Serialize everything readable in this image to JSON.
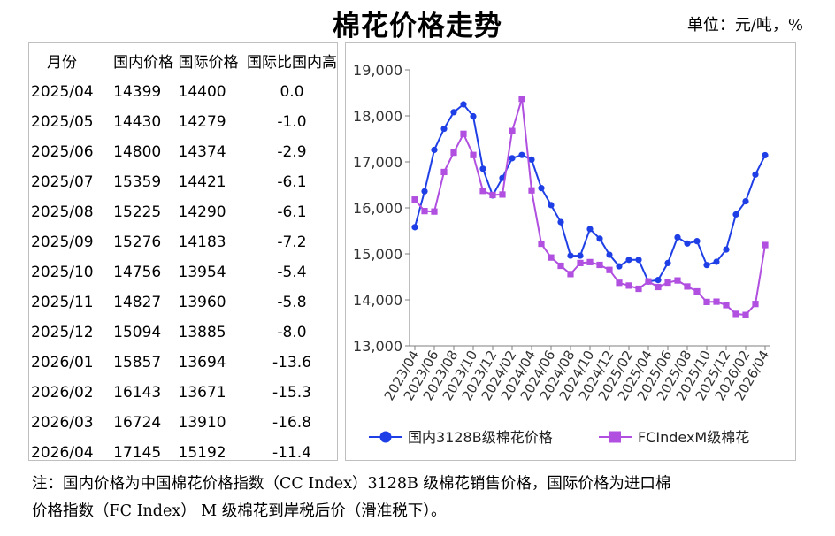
{
  "header": {
    "title": "棉花价格走势",
    "unit": "单位：元/吨，%"
  },
  "table": {
    "columns": [
      "月份",
      "国内价格",
      "国际价格",
      "国际比国内高"
    ],
    "rows": [
      [
        "2025/04",
        "14399",
        "14400",
        "0.0"
      ],
      [
        "2025/05",
        "14430",
        "14279",
        "-1.0"
      ],
      [
        "2025/06",
        "14800",
        "14374",
        "-2.9"
      ],
      [
        "2025/07",
        "15359",
        "14421",
        "-6.1"
      ],
      [
        "2025/08",
        "15225",
        "14290",
        "-6.1"
      ],
      [
        "2025/09",
        "15276",
        "14183",
        "-7.2"
      ],
      [
        "2025/10",
        "14756",
        "13954",
        "-5.4"
      ],
      [
        "2025/11",
        "14827",
        "13960",
        "-5.8"
      ],
      [
        "2025/12",
        "15094",
        "13885",
        "-8.0"
      ],
      [
        "2026/01",
        "15857",
        "13694",
        "-13.6"
      ],
      [
        "2026/02",
        "16143",
        "13671",
        "-15.3"
      ],
      [
        "2026/03",
        "16724",
        "13910",
        "-16.8"
      ],
      [
        "2026/04",
        "17145",
        "15192",
        "-11.4"
      ]
    ]
  },
  "chart_data": {
    "type": "line",
    "x": [
      "2023/04",
      "2023/05",
      "2023/06",
      "2023/07",
      "2023/08",
      "2023/09",
      "2023/10",
      "2023/11",
      "2023/12",
      "2024/01",
      "2024/02",
      "2024/03",
      "2024/04",
      "2024/05",
      "2024/06",
      "2024/07",
      "2024/08",
      "2024/09",
      "2024/10",
      "2024/11",
      "2024/12",
      "2025/01",
      "2025/02",
      "2025/03",
      "2025/04",
      "2025/05",
      "2025/06",
      "2025/07",
      "2025/08",
      "2025/09",
      "2025/10",
      "2025/11",
      "2025/12",
      "2026/01",
      "2026/02",
      "2026/03",
      "2026/04"
    ],
    "x_tick_labels": [
      "2023/04",
      "2023/06",
      "2023/08",
      "2023/10",
      "2023/12",
      "2024/02",
      "2024/04",
      "2024/06",
      "2024/08",
      "2024/10",
      "2024/12",
      "2025/02",
      "2025/04",
      "2025/06",
      "2025/08",
      "2025/10",
      "2025/12",
      "2026/02",
      "2026/04"
    ],
    "series": [
      {
        "name": "国内3128B级棉花价格",
        "color": "#1f3fe6",
        "marker": "circle",
        "values": [
          15580,
          16360,
          17260,
          17720,
          18080,
          18250,
          17990,
          16850,
          16270,
          16650,
          17080,
          17150,
          17050,
          16430,
          16060,
          15690,
          14960,
          14960,
          15540,
          15330,
          14980,
          14730,
          14870,
          14870,
          14399,
          14430,
          14800,
          15359,
          15225,
          15276,
          14756,
          14827,
          15094,
          15857,
          16143,
          16724,
          17145
        ]
      },
      {
        "name": "FCIndexM级棉花",
        "color": "#b04fe0",
        "marker": "square",
        "values": [
          16180,
          15930,
          15920,
          16780,
          17200,
          17610,
          17150,
          16370,
          16280,
          16290,
          17670,
          18370,
          16380,
          15220,
          14920,
          14740,
          14560,
          14800,
          14820,
          14760,
          14650,
          14370,
          14310,
          14240,
          14400,
          14279,
          14374,
          14421,
          14290,
          14183,
          13954,
          13960,
          13885,
          13694,
          13671,
          13910,
          15192
        ]
      }
    ],
    "ylim": [
      13000,
      19000
    ],
    "y_ticks": [
      "13,000",
      "14,000",
      "15,000",
      "16,000",
      "17,000",
      "18,000",
      "19,000"
    ],
    "grid": false,
    "legend_position": "bottom"
  },
  "note": {
    "line1": "注：国内价格为中国棉花价格指数（CC Index）3128B 级棉花销售价格，国际价格为进口棉",
    "line2": "价格指数（FC Index） M 级棉花到岸税后价（滑准税下）。"
  }
}
